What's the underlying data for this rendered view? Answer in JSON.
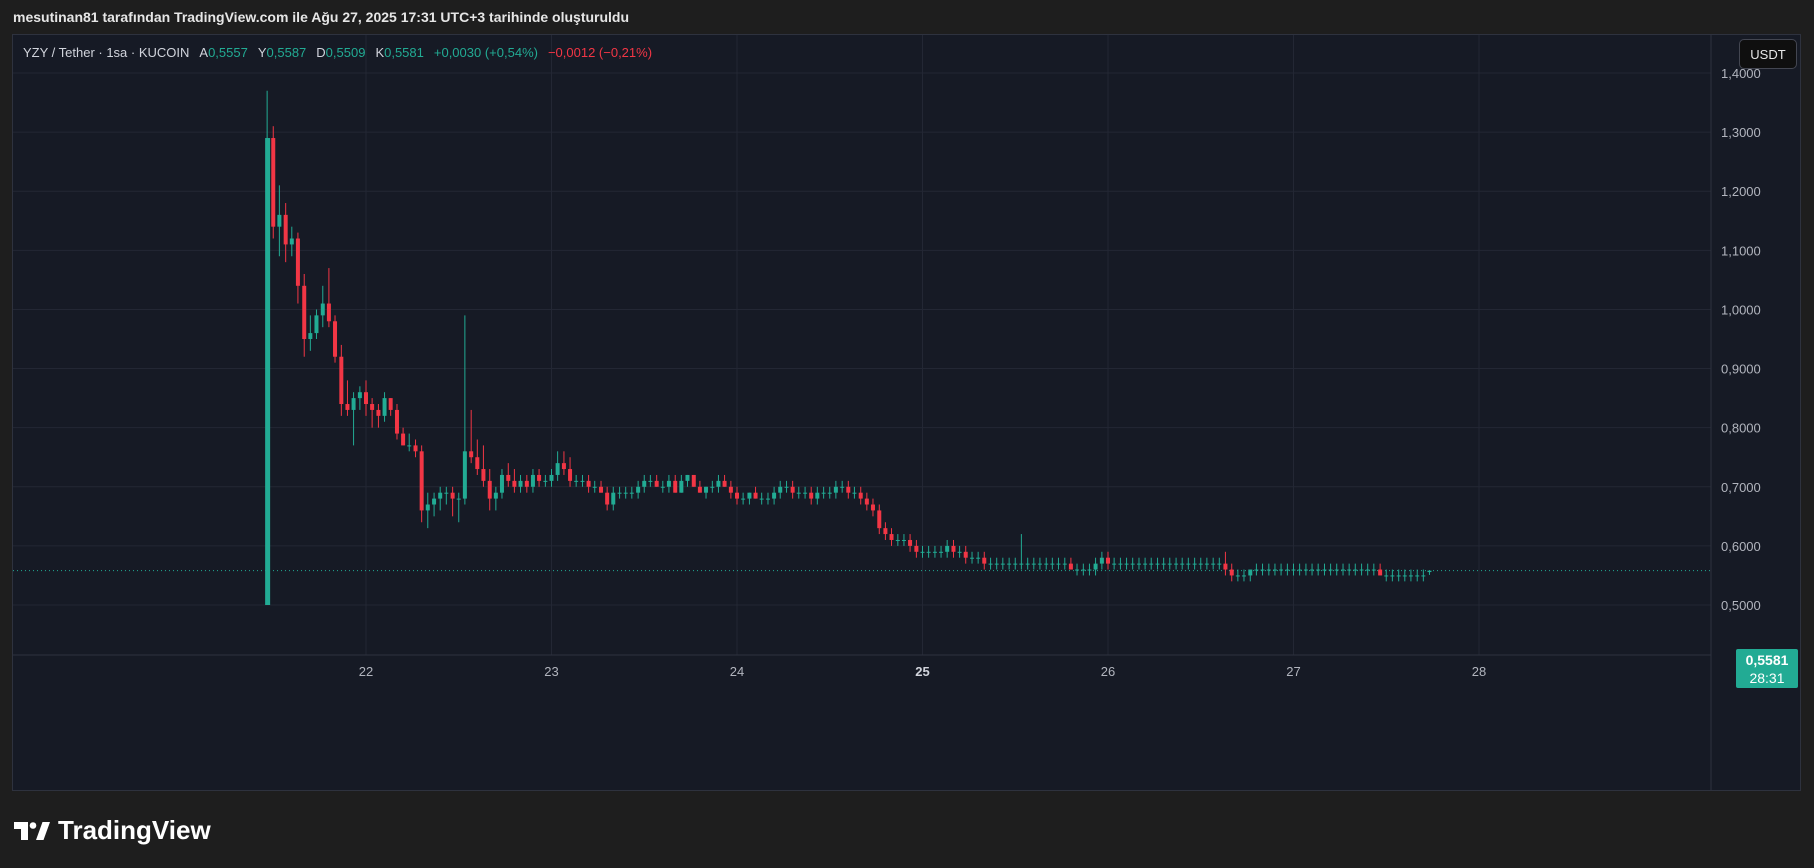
{
  "header": {
    "caption": "mesutinan81 tarafından TradingView.com ile Ağu 27, 2025 17:31 UTC+3 tarihinde oluşturuldu"
  },
  "legend": {
    "symbol": "YZY / Tether · 1sa · KUCOIN",
    "open_label": "A",
    "open_value": "0,5557",
    "high_label": "Y",
    "high_value": "0,5587",
    "low_label": "D",
    "low_value": "0,5509",
    "close_label": "K",
    "close_value": "0,5581",
    "change": "+0,0030 (+0,54%)",
    "secondary_change": "−0,0012 (−0,21%)"
  },
  "currency_button": "USDT",
  "last_price": {
    "value": "0,5581",
    "countdown": "28:31"
  },
  "logo_text": "TradingView",
  "colors": {
    "up": "#22ab94",
    "down": "#f23645",
    "background": "#161a25",
    "grid": "#232734"
  },
  "chart_data": {
    "type": "candlestick",
    "symbol": "YZY / Tether",
    "interval": "1sa",
    "exchange": "KUCOIN",
    "ylim": [
      0.4,
      1.42
    ],
    "x_day_range": [
      21.0,
      28.45
    ],
    "y_ticks": [
      {
        "value": 0.5,
        "label": "0,5000"
      },
      {
        "value": 0.6,
        "label": "0,6000"
      },
      {
        "value": 0.7,
        "label": "0,7000"
      },
      {
        "value": 0.8,
        "label": "0,8000"
      },
      {
        "value": 0.9,
        "label": "0,9000"
      },
      {
        "value": 1.0,
        "label": "1,0000"
      },
      {
        "value": 1.1,
        "label": "1,1000"
      },
      {
        "value": 1.2,
        "label": "1,2000"
      },
      {
        "value": 1.3,
        "label": "1,3000"
      },
      {
        "value": 1.4,
        "label": "1,4000"
      }
    ],
    "x_ticks": [
      {
        "day": 22,
        "label": "22",
        "bold": false
      },
      {
        "day": 23,
        "label": "23",
        "bold": false
      },
      {
        "day": 24,
        "label": "24",
        "bold": false
      },
      {
        "day": 25,
        "label": "25",
        "bold": true
      },
      {
        "day": 26,
        "label": "26",
        "bold": false
      },
      {
        "day": 27,
        "label": "27",
        "bold": false
      },
      {
        "day": 28,
        "label": "28",
        "bold": false
      }
    ],
    "last_price": 0.5581,
    "candle_fields": [
      "day",
      "open",
      "high",
      "low",
      "close"
    ],
    "candles": [
      [
        21.467,
        0.5,
        1.37,
        0.5,
        1.29
      ],
      [
        21.5,
        1.29,
        1.31,
        1.12,
        1.14
      ],
      [
        21.533,
        1.14,
        1.21,
        1.09,
        1.16
      ],
      [
        21.567,
        1.16,
        1.18,
        1.08,
        1.11
      ],
      [
        21.6,
        1.11,
        1.14,
        1.09,
        1.12
      ],
      [
        21.633,
        1.12,
        1.13,
        1.01,
        1.04
      ],
      [
        21.667,
        1.04,
        1.06,
        0.92,
        0.95
      ],
      [
        21.7,
        0.95,
        0.99,
        0.93,
        0.96
      ],
      [
        21.733,
        0.96,
        1.0,
        0.95,
        0.99
      ],
      [
        21.767,
        0.99,
        1.04,
        0.97,
        1.01
      ],
      [
        21.8,
        1.01,
        1.07,
        0.97,
        0.98
      ],
      [
        21.833,
        0.98,
        0.99,
        0.91,
        0.92
      ],
      [
        21.867,
        0.92,
        0.94,
        0.82,
        0.84
      ],
      [
        21.9,
        0.84,
        0.88,
        0.82,
        0.83
      ],
      [
        21.933,
        0.83,
        0.86,
        0.77,
        0.85
      ],
      [
        21.967,
        0.85,
        0.87,
        0.83,
        0.86
      ],
      [
        22.0,
        0.86,
        0.88,
        0.82,
        0.84
      ],
      [
        22.033,
        0.84,
        0.85,
        0.8,
        0.83
      ],
      [
        22.067,
        0.83,
        0.84,
        0.8,
        0.82
      ],
      [
        22.1,
        0.82,
        0.86,
        0.81,
        0.85
      ],
      [
        22.133,
        0.85,
        0.85,
        0.82,
        0.83
      ],
      [
        22.167,
        0.83,
        0.84,
        0.78,
        0.79
      ],
      [
        22.2,
        0.79,
        0.8,
        0.77,
        0.77
      ],
      [
        22.233,
        0.77,
        0.79,
        0.76,
        0.77
      ],
      [
        22.267,
        0.77,
        0.78,
        0.75,
        0.76
      ],
      [
        22.3,
        0.76,
        0.77,
        0.64,
        0.66
      ],
      [
        22.333,
        0.66,
        0.69,
        0.63,
        0.67
      ],
      [
        22.367,
        0.67,
        0.69,
        0.65,
        0.68
      ],
      [
        22.4,
        0.68,
        0.7,
        0.66,
        0.69
      ],
      [
        22.433,
        0.69,
        0.7,
        0.67,
        0.69
      ],
      [
        22.467,
        0.69,
        0.7,
        0.65,
        0.68
      ],
      [
        22.5,
        0.68,
        0.69,
        0.64,
        0.68
      ],
      [
        22.533,
        0.68,
        0.99,
        0.67,
        0.76
      ],
      [
        22.567,
        0.76,
        0.83,
        0.74,
        0.75
      ],
      [
        22.6,
        0.75,
        0.78,
        0.72,
        0.73
      ],
      [
        22.633,
        0.73,
        0.77,
        0.7,
        0.71
      ],
      [
        22.667,
        0.71,
        0.73,
        0.66,
        0.68
      ],
      [
        22.7,
        0.68,
        0.7,
        0.66,
        0.69
      ],
      [
        22.733,
        0.69,
        0.73,
        0.68,
        0.72
      ],
      [
        22.767,
        0.72,
        0.74,
        0.7,
        0.71
      ],
      [
        22.8,
        0.71,
        0.73,
        0.69,
        0.7
      ],
      [
        22.833,
        0.7,
        0.72,
        0.69,
        0.71
      ],
      [
        22.867,
        0.71,
        0.72,
        0.69,
        0.7
      ],
      [
        22.9,
        0.7,
        0.73,
        0.69,
        0.72
      ],
      [
        22.933,
        0.72,
        0.73,
        0.7,
        0.71
      ],
      [
        22.967,
        0.71,
        0.72,
        0.7,
        0.71
      ],
      [
        23.0,
        0.71,
        0.73,
        0.7,
        0.72
      ],
      [
        23.033,
        0.72,
        0.76,
        0.71,
        0.74
      ],
      [
        23.067,
        0.74,
        0.76,
        0.72,
        0.73
      ],
      [
        23.1,
        0.73,
        0.75,
        0.7,
        0.71
      ],
      [
        23.133,
        0.71,
        0.72,
        0.7,
        0.71
      ],
      [
        23.167,
        0.71,
        0.72,
        0.7,
        0.71
      ],
      [
        23.2,
        0.71,
        0.72,
        0.69,
        0.7
      ],
      [
        23.233,
        0.7,
        0.71,
        0.69,
        0.7
      ],
      [
        23.267,
        0.7,
        0.71,
        0.69,
        0.69
      ],
      [
        23.3,
        0.69,
        0.7,
        0.66,
        0.67
      ],
      [
        23.333,
        0.67,
        0.7,
        0.66,
        0.69
      ],
      [
        23.367,
        0.69,
        0.7,
        0.68,
        0.69
      ],
      [
        23.4,
        0.69,
        0.7,
        0.68,
        0.69
      ],
      [
        23.433,
        0.69,
        0.7,
        0.68,
        0.69
      ],
      [
        23.467,
        0.69,
        0.71,
        0.68,
        0.7
      ],
      [
        23.5,
        0.7,
        0.72,
        0.69,
        0.71
      ],
      [
        23.533,
        0.71,
        0.72,
        0.7,
        0.71
      ],
      [
        23.567,
        0.71,
        0.72,
        0.7,
        0.7
      ],
      [
        23.6,
        0.7,
        0.71,
        0.69,
        0.7
      ],
      [
        23.633,
        0.7,
        0.72,
        0.69,
        0.71
      ],
      [
        23.667,
        0.71,
        0.72,
        0.69,
        0.69
      ],
      [
        23.7,
        0.69,
        0.72,
        0.69,
        0.71
      ],
      [
        23.733,
        0.71,
        0.72,
        0.7,
        0.72
      ],
      [
        23.767,
        0.72,
        0.72,
        0.7,
        0.7
      ],
      [
        23.8,
        0.7,
        0.71,
        0.69,
        0.69
      ],
      [
        23.833,
        0.69,
        0.7,
        0.68,
        0.7
      ],
      [
        23.867,
        0.7,
        0.71,
        0.69,
        0.7
      ],
      [
        23.9,
        0.7,
        0.72,
        0.69,
        0.71
      ],
      [
        23.933,
        0.71,
        0.72,
        0.7,
        0.7
      ],
      [
        23.967,
        0.7,
        0.71,
        0.68,
        0.69
      ],
      [
        24.0,
        0.69,
        0.7,
        0.67,
        0.68
      ],
      [
        24.033,
        0.68,
        0.69,
        0.67,
        0.68
      ],
      [
        24.067,
        0.68,
        0.69,
        0.67,
        0.69
      ],
      [
        24.1,
        0.69,
        0.7,
        0.68,
        0.68
      ],
      [
        24.133,
        0.68,
        0.69,
        0.67,
        0.68
      ],
      [
        24.167,
        0.68,
        0.69,
        0.67,
        0.68
      ],
      [
        24.2,
        0.68,
        0.7,
        0.67,
        0.69
      ],
      [
        24.233,
        0.69,
        0.71,
        0.68,
        0.7
      ],
      [
        24.267,
        0.7,
        0.71,
        0.69,
        0.7
      ],
      [
        24.3,
        0.7,
        0.71,
        0.68,
        0.69
      ],
      [
        24.333,
        0.69,
        0.7,
        0.68,
        0.69
      ],
      [
        24.367,
        0.69,
        0.7,
        0.68,
        0.69
      ],
      [
        24.4,
        0.69,
        0.7,
        0.67,
        0.68
      ],
      [
        24.433,
        0.68,
        0.7,
        0.67,
        0.69
      ],
      [
        24.467,
        0.69,
        0.7,
        0.68,
        0.69
      ],
      [
        24.5,
        0.69,
        0.7,
        0.68,
        0.69
      ],
      [
        24.533,
        0.69,
        0.71,
        0.68,
        0.7
      ],
      [
        24.567,
        0.7,
        0.71,
        0.69,
        0.7
      ],
      [
        24.6,
        0.7,
        0.71,
        0.68,
        0.69
      ],
      [
        24.633,
        0.69,
        0.7,
        0.68,
        0.69
      ],
      [
        24.667,
        0.69,
        0.7,
        0.67,
        0.68
      ],
      [
        24.7,
        0.68,
        0.69,
        0.66,
        0.67
      ],
      [
        24.733,
        0.67,
        0.68,
        0.65,
        0.66
      ],
      [
        24.767,
        0.66,
        0.67,
        0.62,
        0.63
      ],
      [
        24.8,
        0.63,
        0.64,
        0.61,
        0.62
      ],
      [
        24.833,
        0.62,
        0.63,
        0.6,
        0.61
      ],
      [
        24.867,
        0.61,
        0.62,
        0.6,
        0.61
      ],
      [
        24.9,
        0.61,
        0.62,
        0.6,
        0.61
      ],
      [
        24.933,
        0.61,
        0.62,
        0.59,
        0.6
      ],
      [
        24.967,
        0.6,
        0.61,
        0.58,
        0.59
      ],
      [
        25.0,
        0.59,
        0.6,
        0.58,
        0.59
      ],
      [
        25.033,
        0.59,
        0.6,
        0.58,
        0.59
      ],
      [
        25.067,
        0.59,
        0.6,
        0.58,
        0.59
      ],
      [
        25.1,
        0.59,
        0.6,
        0.58,
        0.59
      ],
      [
        25.133,
        0.59,
        0.61,
        0.58,
        0.6
      ],
      [
        25.167,
        0.6,
        0.61,
        0.58,
        0.59
      ],
      [
        25.2,
        0.59,
        0.6,
        0.58,
        0.59
      ],
      [
        25.233,
        0.59,
        0.6,
        0.57,
        0.58
      ],
      [
        25.267,
        0.58,
        0.59,
        0.57,
        0.58
      ],
      [
        25.3,
        0.58,
        0.59,
        0.57,
        0.58
      ],
      [
        25.333,
        0.58,
        0.59,
        0.56,
        0.57
      ],
      [
        25.367,
        0.57,
        0.58,
        0.56,
        0.57
      ],
      [
        25.4,
        0.57,
        0.58,
        0.56,
        0.57
      ],
      [
        25.433,
        0.57,
        0.58,
        0.56,
        0.57
      ],
      [
        25.467,
        0.57,
        0.58,
        0.56,
        0.57
      ],
      [
        25.5,
        0.57,
        0.58,
        0.56,
        0.57
      ],
      [
        25.533,
        0.57,
        0.62,
        0.56,
        0.57
      ],
      [
        25.567,
        0.57,
        0.58,
        0.56,
        0.57
      ],
      [
        25.6,
        0.57,
        0.58,
        0.56,
        0.57
      ],
      [
        25.633,
        0.57,
        0.58,
        0.56,
        0.57
      ],
      [
        25.667,
        0.57,
        0.58,
        0.56,
        0.57
      ],
      [
        25.7,
        0.57,
        0.58,
        0.56,
        0.57
      ],
      [
        25.733,
        0.57,
        0.58,
        0.56,
        0.57
      ],
      [
        25.767,
        0.57,
        0.58,
        0.56,
        0.57
      ],
      [
        25.8,
        0.57,
        0.58,
        0.56,
        0.56
      ],
      [
        25.833,
        0.56,
        0.57,
        0.55,
        0.56
      ],
      [
        25.867,
        0.56,
        0.57,
        0.55,
        0.56
      ],
      [
        25.9,
        0.56,
        0.57,
        0.55,
        0.56
      ],
      [
        25.933,
        0.56,
        0.58,
        0.55,
        0.57
      ],
      [
        25.967,
        0.57,
        0.59,
        0.56,
        0.58
      ],
      [
        26.0,
        0.58,
        0.59,
        0.56,
        0.57
      ],
      [
        26.033,
        0.57,
        0.58,
        0.56,
        0.57
      ],
      [
        26.067,
        0.57,
        0.58,
        0.56,
        0.57
      ],
      [
        26.1,
        0.57,
        0.58,
        0.56,
        0.57
      ],
      [
        26.133,
        0.57,
        0.58,
        0.56,
        0.57
      ],
      [
        26.167,
        0.57,
        0.58,
        0.56,
        0.57
      ],
      [
        26.2,
        0.57,
        0.58,
        0.56,
        0.57
      ],
      [
        26.233,
        0.57,
        0.58,
        0.56,
        0.57
      ],
      [
        26.267,
        0.57,
        0.58,
        0.56,
        0.57
      ],
      [
        26.3,
        0.57,
        0.58,
        0.56,
        0.57
      ],
      [
        26.333,
        0.57,
        0.58,
        0.56,
        0.57
      ],
      [
        26.367,
        0.57,
        0.58,
        0.56,
        0.57
      ],
      [
        26.4,
        0.57,
        0.58,
        0.56,
        0.57
      ],
      [
        26.433,
        0.57,
        0.58,
        0.56,
        0.57
      ],
      [
        26.467,
        0.57,
        0.58,
        0.56,
        0.57
      ],
      [
        26.5,
        0.57,
        0.58,
        0.56,
        0.57
      ],
      [
        26.533,
        0.57,
        0.58,
        0.56,
        0.57
      ],
      [
        26.567,
        0.57,
        0.58,
        0.56,
        0.57
      ],
      [
        26.6,
        0.57,
        0.58,
        0.56,
        0.57
      ],
      [
        26.633,
        0.57,
        0.59,
        0.55,
        0.56
      ],
      [
        26.667,
        0.56,
        0.57,
        0.54,
        0.55
      ],
      [
        26.7,
        0.55,
        0.56,
        0.54,
        0.55
      ],
      [
        26.733,
        0.55,
        0.56,
        0.54,
        0.55
      ],
      [
        26.767,
        0.55,
        0.56,
        0.54,
        0.56
      ],
      [
        26.8,
        0.56,
        0.57,
        0.55,
        0.56
      ],
      [
        26.833,
        0.56,
        0.57,
        0.55,
        0.56
      ],
      [
        26.867,
        0.56,
        0.57,
        0.55,
        0.56
      ],
      [
        26.9,
        0.56,
        0.57,
        0.55,
        0.56
      ],
      [
        26.933,
        0.56,
        0.57,
        0.55,
        0.56
      ],
      [
        26.967,
        0.56,
        0.57,
        0.55,
        0.56
      ],
      [
        27.0,
        0.56,
        0.57,
        0.55,
        0.56
      ],
      [
        27.033,
        0.56,
        0.57,
        0.55,
        0.56
      ],
      [
        27.067,
        0.56,
        0.57,
        0.55,
        0.56
      ],
      [
        27.1,
        0.56,
        0.57,
        0.55,
        0.56
      ],
      [
        27.133,
        0.56,
        0.57,
        0.55,
        0.56
      ],
      [
        27.167,
        0.56,
        0.57,
        0.55,
        0.56
      ],
      [
        27.2,
        0.56,
        0.57,
        0.55,
        0.56
      ],
      [
        27.233,
        0.56,
        0.57,
        0.55,
        0.56
      ],
      [
        27.267,
        0.56,
        0.57,
        0.55,
        0.56
      ],
      [
        27.3,
        0.56,
        0.57,
        0.55,
        0.56
      ],
      [
        27.333,
        0.56,
        0.57,
        0.55,
        0.56
      ],
      [
        27.367,
        0.56,
        0.57,
        0.55,
        0.56
      ],
      [
        27.4,
        0.56,
        0.57,
        0.55,
        0.56
      ],
      [
        27.433,
        0.56,
        0.57,
        0.55,
        0.56
      ],
      [
        27.467,
        0.56,
        0.57,
        0.55,
        0.55
      ],
      [
        27.5,
        0.55,
        0.56,
        0.54,
        0.55
      ],
      [
        27.533,
        0.55,
        0.56,
        0.54,
        0.55
      ],
      [
        27.567,
        0.55,
        0.56,
        0.54,
        0.55
      ],
      [
        27.6,
        0.55,
        0.56,
        0.54,
        0.55
      ],
      [
        27.633,
        0.55,
        0.56,
        0.54,
        0.55
      ],
      [
        27.667,
        0.55,
        0.56,
        0.54,
        0.55
      ],
      [
        27.7,
        0.55,
        0.56,
        0.54,
        0.55
      ],
      [
        27.733,
        0.5557,
        0.5587,
        0.5509,
        0.5581
      ]
    ]
  }
}
